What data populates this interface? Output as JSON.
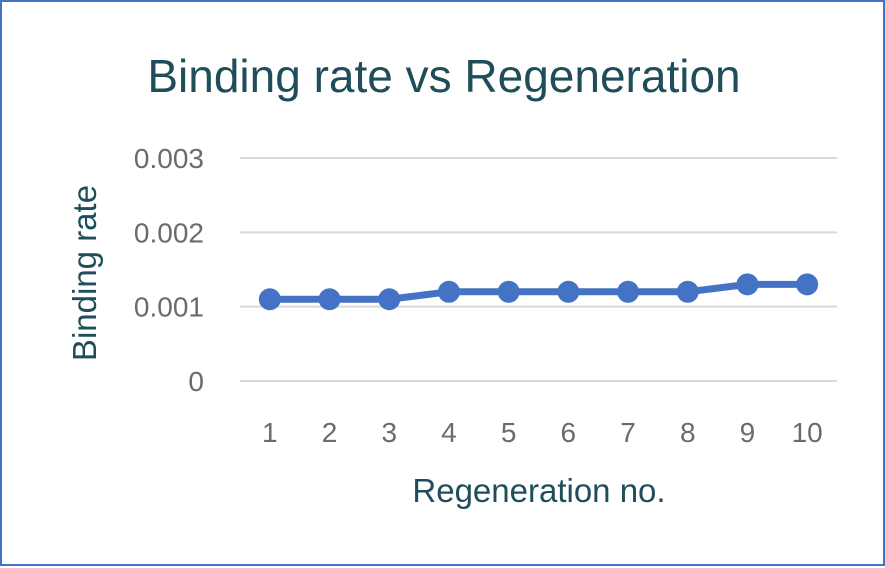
{
  "chart_data": {
    "type": "line",
    "title": "Binding rate vs Regeneration",
    "xlabel": "Regeneration no.",
    "ylabel": "Binding rate",
    "categories": [
      "1",
      "2",
      "3",
      "4",
      "5",
      "6",
      "7",
      "8",
      "9",
      "10"
    ],
    "series": [
      {
        "values": [
          0.0011,
          0.0011,
          0.0011,
          0.0012,
          0.0012,
          0.0012,
          0.0012,
          0.0012,
          0.0013,
          0.0013
        ],
        "color": "#4472c4"
      }
    ],
    "ylim": [
      0,
      0.003
    ],
    "yticks": [
      "0",
      "0.001",
      "0.002",
      "0.003"
    ],
    "grid": true,
    "legend": "none"
  }
}
